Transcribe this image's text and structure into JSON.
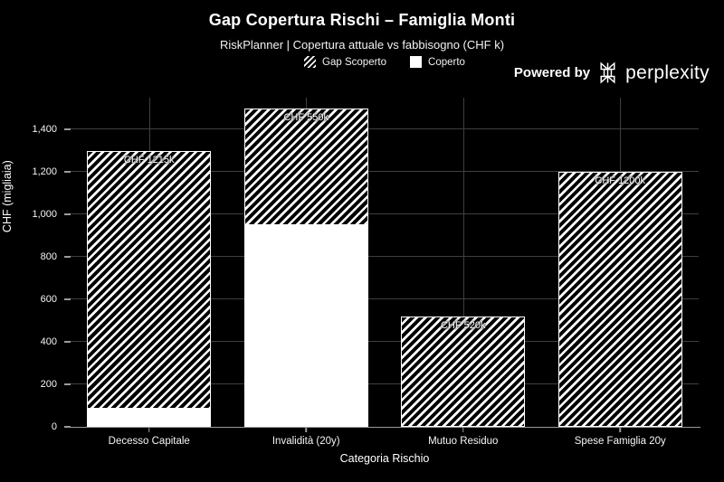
{
  "colors": {
    "background": "#000000",
    "text": "#ffffff",
    "grid": "#3f3f3f",
    "axis": "#9a9a9a",
    "bar_fill": "#ffffff"
  },
  "branding": {
    "powered_by": "Powered by",
    "brand": "perplexity"
  },
  "chart_data": {
    "type": "bar",
    "stacked": true,
    "title": "Gap Copertura Rischi – Famiglia Monti",
    "subtitle": "RiskPlanner | Copertura attuale vs fabbisogno (CHF k)",
    "categories": [
      "Decesso Capitale",
      "Invalidità (20y)",
      "Mutuo Residuo",
      "Spese Famiglia 20y"
    ],
    "series": [
      {
        "name": "Coperto",
        "style": "solid",
        "values": [
          85,
          950,
          0,
          0
        ]
      },
      {
        "name": "Gap Scoperto",
        "style": "hatched",
        "values": [
          1215,
          550,
          520,
          1200
        ]
      }
    ],
    "totals": [
      1300,
      1500,
      520,
      1200
    ],
    "bar_labels": [
      "CHF 1215k",
      "CHF 550k",
      "CHF 520k",
      "CHF 1200k"
    ],
    "xlabel": "Categoria Rischio",
    "ylabel": "CHF (migliaia)",
    "ylim": [
      0,
      1550
    ],
    "yticks": {
      "values": [
        0,
        200,
        400,
        600,
        800,
        1000,
        1200,
        1400
      ],
      "labels": [
        "0",
        "200",
        "400",
        "600",
        "800",
        "1,000",
        "1,200",
        "1,400"
      ]
    },
    "legend": {
      "position": "top-center",
      "items": [
        {
          "label": "Gap Scoperto",
          "style": "hatched"
        },
        {
          "label": "Coperto",
          "style": "solid"
        }
      ]
    },
    "grid": true
  }
}
